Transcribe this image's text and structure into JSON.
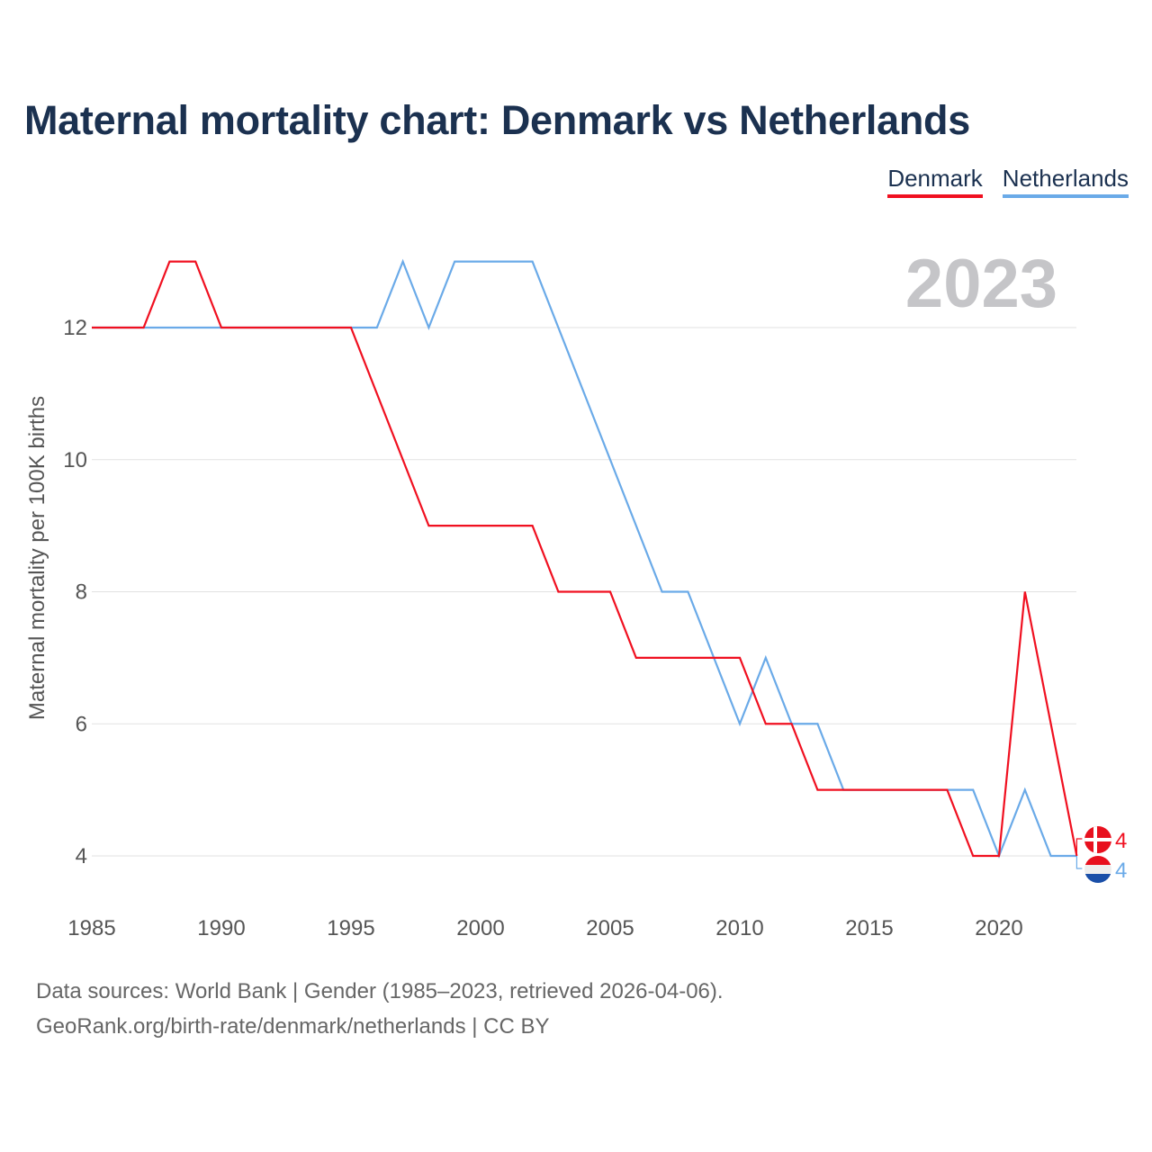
{
  "title": "Maternal mortality chart: Denmark vs Netherlands",
  "year_label": "2023",
  "footer": {
    "line1": "Data sources: World Bank | Gender (1985–2023, retrieved 2026-04-06).",
    "line2": "GeoRank.org/birth-rate/denmark/netherlands | CC BY"
  },
  "chart_data": {
    "type": "line",
    "title": "Maternal mortality chart: Denmark vs Netherlands",
    "xlabel": "",
    "ylabel": "Maternal mortality per 100K births",
    "xlim": [
      1985,
      2023
    ],
    "ylim": [
      3.2,
      13.3
    ],
    "x_ticks": [
      "1985",
      "1990",
      "1995",
      "2000",
      "2005",
      "2010",
      "2015",
      "2020"
    ],
    "y_ticks": [
      "4",
      "6",
      "8",
      "10",
      "12"
    ],
    "grid": true,
    "legend_position": "top-right",
    "x": [
      1985,
      1986,
      1987,
      1988,
      1989,
      1990,
      1991,
      1992,
      1993,
      1994,
      1995,
      1996,
      1997,
      1998,
      1999,
      2000,
      2001,
      2002,
      2003,
      2004,
      2005,
      2006,
      2007,
      2008,
      2009,
      2010,
      2011,
      2012,
      2013,
      2014,
      2015,
      2016,
      2017,
      2018,
      2019,
      2020,
      2021,
      2022,
      2023
    ],
    "series": [
      {
        "name": "Denmark",
        "color": "#f01020",
        "end_label": "4",
        "values": [
          12,
          12,
          12,
          13,
          13,
          12,
          12,
          12,
          12,
          12,
          12,
          11,
          10,
          9,
          9,
          9,
          9,
          9,
          8,
          8,
          8,
          7,
          7,
          7,
          7,
          7,
          6,
          6,
          5,
          5,
          5,
          5,
          5,
          5,
          4,
          4,
          8,
          6,
          4
        ]
      },
      {
        "name": "Netherlands",
        "color": "#6aaae8",
        "end_label": "4",
        "values": [
          12,
          12,
          12,
          12,
          12,
          12,
          12,
          12,
          12,
          12,
          12,
          12,
          13,
          12,
          13,
          13,
          13,
          13,
          12,
          11,
          10,
          9,
          8,
          8,
          7,
          6,
          7,
          6,
          6,
          5,
          5,
          5,
          5,
          5,
          5,
          4,
          5,
          4,
          4
        ]
      }
    ]
  }
}
